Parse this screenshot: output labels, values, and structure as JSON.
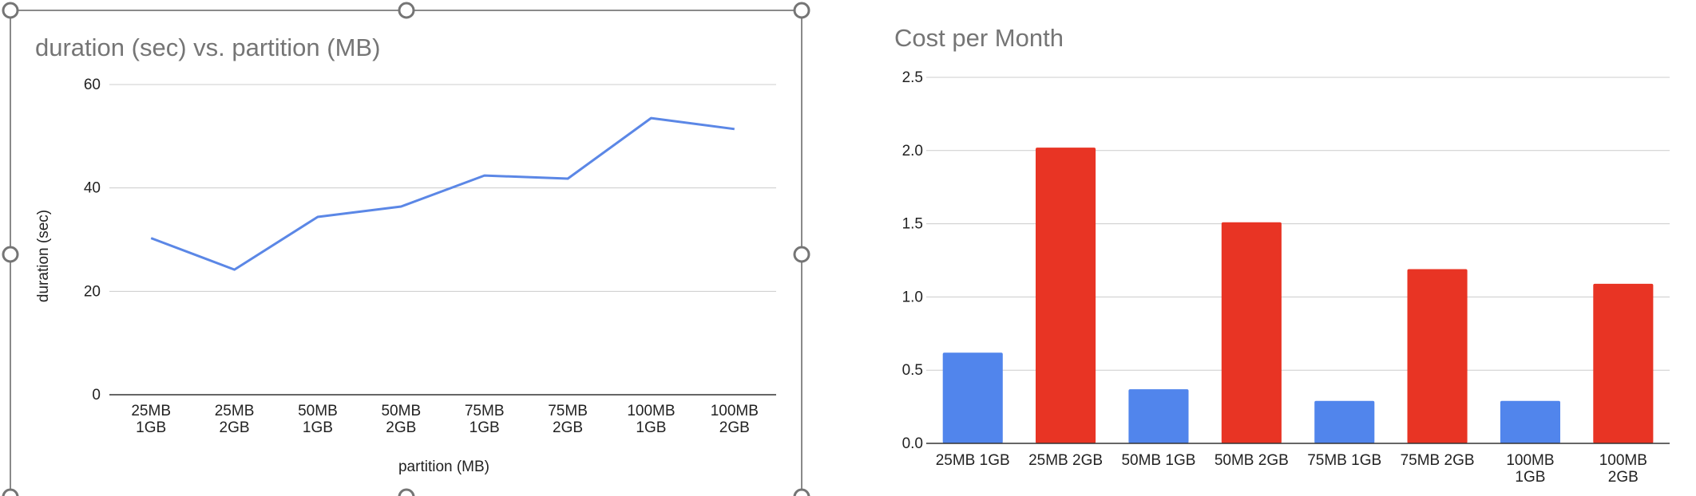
{
  "chart_data": [
    {
      "type": "line",
      "title": "duration (sec) vs. partition (MB)",
      "xlabel": "partition (MB)",
      "ylabel": "duration (sec)",
      "categories": [
        [
          "25MB",
          "1GB"
        ],
        [
          "25MB",
          "2GB"
        ],
        [
          "50MB",
          "1GB"
        ],
        [
          "50MB",
          "2GB"
        ],
        [
          "75MB",
          "1GB"
        ],
        [
          "75MB",
          "2GB"
        ],
        [
          "100MB",
          "1GB"
        ],
        [
          "100MB",
          "2GB"
        ]
      ],
      "series": [
        {
          "values": [
            30.3,
            24.2,
            34.4,
            36.4,
            42.4,
            41.8,
            53.5,
            51.4
          ],
          "color": "#5b87e6"
        }
      ],
      "ylim": [
        0,
        60
      ],
      "yticks": [
        "0",
        "20",
        "40",
        "60"
      ],
      "grid": true,
      "legend": "none",
      "selected": true
    },
    {
      "type": "bar",
      "title": "Cost per Month",
      "xlabel": "",
      "ylabel": "",
      "categories": [
        [
          "25MB 1GB"
        ],
        [
          "25MB 2GB"
        ],
        [
          "50MB 1GB"
        ],
        [
          "50MB 2GB"
        ],
        [
          "75MB 1GB"
        ],
        [
          "75MB 2GB"
        ],
        [
          "100MB",
          "1GB"
        ],
        [
          "100MB",
          "2GB"
        ]
      ],
      "values": [
        0.62,
        2.02,
        0.37,
        1.51,
        0.29,
        1.19,
        0.29,
        1.09
      ],
      "bar_colors": [
        "#5185ec",
        "#e83424",
        "#5185ec",
        "#e83424",
        "#5185ec",
        "#e83424",
        "#5185ec",
        "#e83424"
      ],
      "ylim": [
        0,
        2.5
      ],
      "yticks": [
        "0.0",
        "0.5",
        "1.0",
        "1.5",
        "2.0",
        "2.5"
      ],
      "grid": true,
      "legend": "none"
    }
  ]
}
